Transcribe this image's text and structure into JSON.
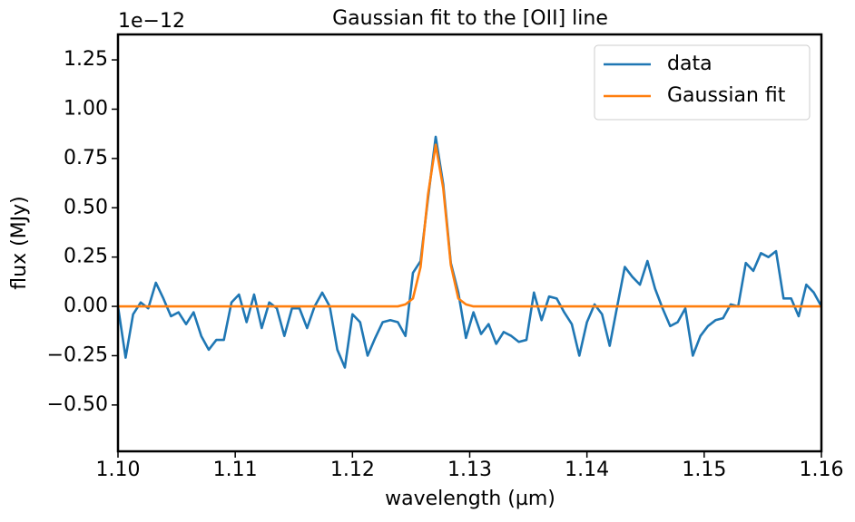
{
  "chart_data": {
    "type": "line",
    "title": "Gaussian fit to the [OII] line",
    "xlabel": "wavelength (µm)",
    "ylabel": "flux (MJy)",
    "offset_text": "1e−12",
    "legend": "upper right",
    "x": [
      1.1,
      1.10065,
      1.10129,
      1.10194,
      1.10258,
      1.10323,
      1.10387,
      1.10452,
      1.10516,
      1.10581,
      1.10645,
      1.1071,
      1.10774,
      1.10839,
      1.10903,
      1.10968,
      1.11032,
      1.11097,
      1.11161,
      1.11226,
      1.1129,
      1.11355,
      1.11419,
      1.11484,
      1.11548,
      1.11613,
      1.11677,
      1.11742,
      1.11806,
      1.11871,
      1.11935,
      1.12,
      1.12065,
      1.12129,
      1.12194,
      1.12258,
      1.12323,
      1.12387,
      1.12452,
      1.12516,
      1.12581,
      1.12645,
      1.1271,
      1.12774,
      1.12839,
      1.12903,
      1.12968,
      1.13032,
      1.13097,
      1.13161,
      1.13226,
      1.1329,
      1.13355,
      1.13419,
      1.13484,
      1.13548,
      1.13613,
      1.13677,
      1.13742,
      1.13806,
      1.13871,
      1.13935,
      1.14,
      1.14065,
      1.14129,
      1.14194,
      1.14258,
      1.14323,
      1.14387,
      1.14452,
      1.14516,
      1.14581,
      1.14645,
      1.1471,
      1.14774,
      1.14839,
      1.14903,
      1.14968,
      1.15032,
      1.15097,
      1.15161,
      1.15226,
      1.1529,
      1.15355,
      1.15419,
      1.15484,
      1.15548,
      1.15613,
      1.15677,
      1.15742,
      1.15806,
      1.15871,
      1.15935,
      1.16
    ],
    "series": [
      {
        "name": "data",
        "color": "#1f77b4",
        "values": [
          0,
          -0.26,
          -0.04,
          0.02,
          -0.01,
          0.12,
          0.04,
          -0.05,
          -0.03,
          -0.09,
          -0.03,
          -0.15,
          -0.22,
          -0.17,
          -0.17,
          0.02,
          0.06,
          -0.08,
          0.06,
          -0.11,
          0.02,
          -0.01,
          -0.15,
          -0.01,
          -0.01,
          -0.11,
          0,
          0.07,
          0,
          -0.22,
          -0.31,
          -0.04,
          -0.08,
          -0.25,
          -0.16,
          -0.08,
          -0.07,
          -0.08,
          -0.15,
          0.17,
          0.23,
          0.55,
          0.86,
          0.62,
          0.22,
          0.07,
          -0.16,
          -0.03,
          -0.14,
          -0.09,
          -0.19,
          -0.13,
          -0.15,
          -0.18,
          -0.17,
          0.07,
          -0.07,
          0.05,
          0.04,
          -0.03,
          -0.09,
          -0.25,
          -0.08,
          0.01,
          -0.04,
          -0.2,
          0,
          0.2,
          0.15,
          0.11,
          0.23,
          0.09,
          -0.01,
          -0.1,
          -0.08,
          -0.01,
          -0.25,
          -0.15,
          -0.1,
          -0.07,
          -0.06,
          0.01,
          0,
          0.22,
          0.18,
          0.27,
          0.25,
          0.28,
          0.04,
          0.04,
          -0.05,
          0.11,
          0.07,
          0
        ]
      },
      {
        "name": "Gaussian fit",
        "color": "#ff7f0e",
        "values": [
          0,
          0,
          0,
          0,
          0,
          0,
          0,
          0,
          0,
          0,
          0,
          0,
          0,
          0,
          0,
          0,
          0,
          0,
          0,
          0,
          0,
          0,
          0,
          0,
          0,
          0,
          0,
          0,
          0,
          0,
          0,
          0,
          0,
          0,
          0,
          0,
          0,
          0,
          0.01,
          0.04,
          0.2,
          0.57,
          0.82,
          0.6,
          0.21,
          0.04,
          0.01,
          0,
          0,
          0,
          0,
          0,
          0,
          0,
          0,
          0,
          0,
          0,
          0,
          0,
          0,
          0,
          0,
          0,
          0,
          0,
          0,
          0,
          0,
          0,
          0,
          0,
          0,
          0,
          0,
          0,
          0,
          0,
          0,
          0,
          0,
          0,
          0,
          0,
          0,
          0,
          0,
          0,
          0,
          0,
          0,
          0,
          0,
          0
        ]
      }
    ],
    "xlim": [
      1.1,
      1.16
    ],
    "xticks": [
      {
        "value": 1.1,
        "label": "1.10"
      },
      1.11,
      1.12,
      1.13,
      1.14,
      1.15,
      1.16
    ],
    "ylim": [
      -0.735,
      1.379
    ],
    "yticks": [
      {
        "value": -0.5,
        "label": "−0.50"
      },
      {
        "value": -0.25,
        "label": "−0.25"
      },
      {
        "value": 0,
        "label": "0.00"
      },
      0.25,
      {
        "value": 0.5,
        "label": "0.50"
      },
      0.75,
      {
        "value": 1,
        "label": "1.00"
      },
      1.25
    ]
  }
}
